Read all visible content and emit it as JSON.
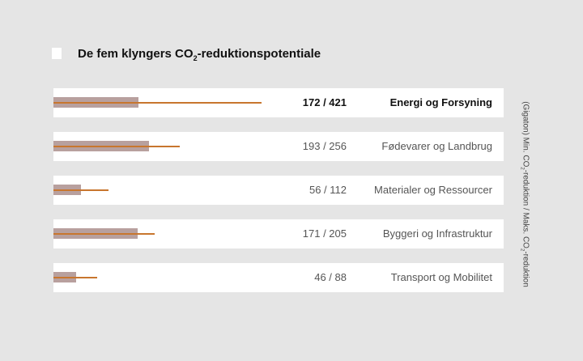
{
  "title": {
    "prefix": "De fem klyngers CO",
    "sub": "2",
    "suffix": "-reduktionspotentiale"
  },
  "axis_title": {
    "part1": "(Gigaton) Min. CO",
    "sub1": "2",
    "part2": "-reduktion / Maks. CO",
    "sub2": "2",
    "part3": "-reduktion"
  },
  "colors": {
    "min_bar": "#b8a09e",
    "max_line": "#c8762e",
    "row_bg": "#ffffff",
    "page_bg": "#e5e5e5"
  },
  "chart_data": {
    "type": "bar",
    "categories": [
      "Energi og Forsyning",
      "Fødevarer og Landbrug",
      "Materialer og Ressourcer",
      "Byggeri og Infrastruktur",
      "Transport og Mobilitet"
    ],
    "series": [
      {
        "name": "Min. CO2-reduktion",
        "values": [
          172,
          193,
          56,
          171,
          46
        ]
      },
      {
        "name": "Maks. CO2-reduktion",
        "values": [
          421,
          256,
          112,
          205,
          88
        ]
      }
    ],
    "value_labels": [
      "172 / 421",
      "193 / 256",
      "56 / 112",
      "171 / 205",
      "46 / 88"
    ],
    "highlighted_index": 0,
    "xlim": [
      0,
      460
    ],
    "orientation": "horizontal"
  }
}
